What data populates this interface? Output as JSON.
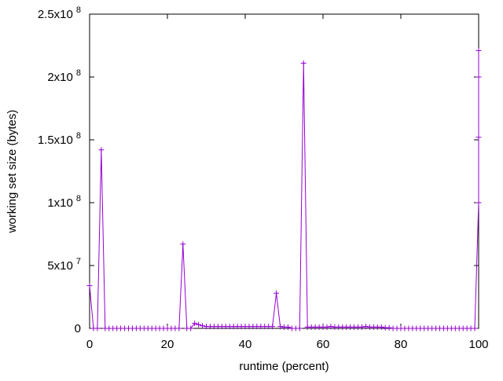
{
  "chart_data": {
    "type": "line",
    "xlabel": "runtime (percent)",
    "ylabel": "working set size (bytes)",
    "xlim": [
      0,
      100
    ],
    "ylim": [
      0,
      250000000
    ],
    "x_ticks": [
      {
        "value": 0,
        "label": "0"
      },
      {
        "value": 20,
        "label": "20"
      },
      {
        "value": 40,
        "label": "40"
      },
      {
        "value": 60,
        "label": "60"
      },
      {
        "value": 80,
        "label": "80"
      },
      {
        "value": 100,
        "label": "100"
      }
    ],
    "y_ticks": [
      {
        "value": 0,
        "mantissa": "0",
        "exp": ""
      },
      {
        "value": 50000000,
        "mantissa": "5x10",
        "exp": "7"
      },
      {
        "value": 100000000,
        "mantissa": "1x10",
        "exp": "8"
      },
      {
        "value": 150000000,
        "mantissa": "1.5x10",
        "exp": "8"
      },
      {
        "value": 200000000,
        "mantissa": "2x10",
        "exp": "8"
      },
      {
        "value": 250000000,
        "mantissa": "2.5x10",
        "exp": "8"
      }
    ],
    "series_color": "#9400d3",
    "marker": "plus",
    "grid": false,
    "series": [
      {
        "points": [
          [
            0,
            34000000
          ],
          [
            1,
            0
          ],
          [
            2,
            0
          ],
          [
            3,
            142000000
          ],
          [
            4,
            0
          ],
          [
            5,
            0
          ],
          [
            6,
            0
          ],
          [
            7,
            0
          ],
          [
            8,
            0
          ],
          [
            9,
            0
          ],
          [
            10,
            0
          ],
          [
            11,
            0
          ],
          [
            12,
            0
          ],
          [
            13,
            0
          ],
          [
            14,
            0
          ],
          [
            15,
            0
          ],
          [
            16,
            0
          ],
          [
            17,
            0
          ],
          [
            18,
            0
          ],
          [
            19,
            0
          ],
          [
            20,
            0
          ],
          [
            21,
            0
          ],
          [
            22,
            0
          ],
          [
            23,
            0
          ],
          [
            24,
            67000000
          ],
          [
            25,
            0
          ],
          [
            26,
            0
          ],
          [
            27,
            4000000
          ],
          [
            28,
            3000000
          ],
          [
            29,
            2000000
          ],
          [
            30,
            1500000
          ],
          [
            31,
            1500000
          ],
          [
            32,
            1500000
          ],
          [
            33,
            1500000
          ],
          [
            34,
            1500000
          ],
          [
            35,
            1500000
          ],
          [
            36,
            1500000
          ],
          [
            37,
            1500000
          ],
          [
            38,
            1500000
          ],
          [
            39,
            1500000
          ],
          [
            40,
            1500000
          ],
          [
            41,
            1500000
          ],
          [
            42,
            1500000
          ],
          [
            43,
            1500000
          ],
          [
            44,
            1500000
          ],
          [
            45,
            1500000
          ],
          [
            46,
            1500000
          ],
          [
            47,
            1500000
          ],
          [
            48,
            28000000
          ],
          [
            49,
            1500000
          ],
          [
            50,
            1000000
          ],
          [
            51,
            1000000
          ],
          [
            52,
            0
          ],
          [
            53,
            0
          ],
          [
            54,
            0
          ],
          [
            55,
            211000000
          ],
          [
            56,
            1000000
          ],
          [
            57,
            1000000
          ],
          [
            58,
            1000000
          ],
          [
            59,
            1000000
          ],
          [
            60,
            1000000
          ],
          [
            61,
            1000000
          ],
          [
            62,
            1500000
          ],
          [
            63,
            1000000
          ],
          [
            64,
            1000000
          ],
          [
            65,
            1000000
          ],
          [
            66,
            1000000
          ],
          [
            67,
            1000000
          ],
          [
            68,
            1000000
          ],
          [
            69,
            1000000
          ],
          [
            70,
            1000000
          ],
          [
            71,
            1500000
          ],
          [
            72,
            1000000
          ],
          [
            73,
            1000000
          ],
          [
            74,
            1000000
          ],
          [
            75,
            1000000
          ],
          [
            76,
            500000
          ],
          [
            77,
            500000
          ],
          [
            78,
            0
          ],
          [
            79,
            0
          ],
          [
            80,
            0
          ],
          [
            81,
            0
          ],
          [
            82,
            0
          ],
          [
            83,
            0
          ],
          [
            84,
            0
          ],
          [
            85,
            0
          ],
          [
            86,
            0
          ],
          [
            87,
            0
          ],
          [
            88,
            0
          ],
          [
            89,
            0
          ],
          [
            90,
            0
          ],
          [
            91,
            0
          ],
          [
            92,
            0
          ],
          [
            93,
            0
          ],
          [
            94,
            0
          ],
          [
            95,
            0
          ],
          [
            96,
            0
          ],
          [
            97,
            0
          ],
          [
            98,
            0
          ],
          [
            99,
            0
          ],
          [
            100,
            100000000
          ],
          [
            100,
            152000000
          ],
          [
            100,
            200000000
          ],
          [
            100,
            221000000
          ]
        ]
      }
    ]
  }
}
